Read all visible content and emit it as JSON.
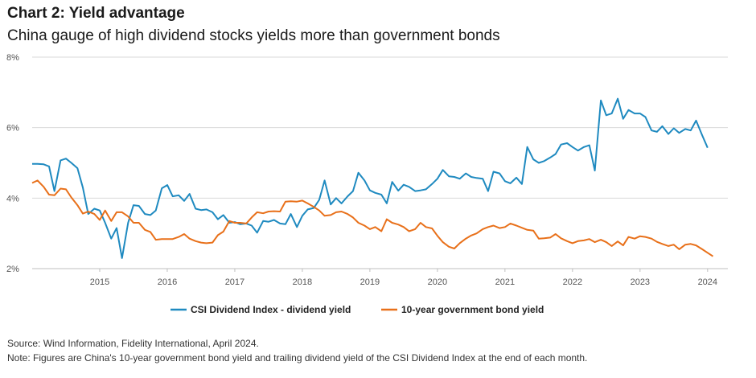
{
  "header": {
    "title": "Chart 2: Yield advantage",
    "subtitle": "China gauge of high dividend stocks yields more than government bonds"
  },
  "footer": {
    "source": "Source: Wind Information, Fidelity International, April 2024.",
    "note": "Note: Figures are China's 10-year government bond yield and trailing dividend yield of the CSI Dividend Index at the end of each month."
  },
  "colors": {
    "csi": "#1f8ac0",
    "bond": "#e8701a",
    "grid": "#d9d9d9",
    "axis": "#bfbfbf"
  },
  "chart_data": {
    "type": "line",
    "title": "Chart 2: Yield advantage",
    "subtitle": "China gauge of high dividend stocks yields more than government bonds",
    "xlabel": "",
    "ylabel": "",
    "ylim": [
      2,
      8
    ],
    "yticks": [
      2,
      4,
      6,
      8
    ],
    "ytick_labels": [
      "2%",
      "4%",
      "6%",
      "8%"
    ],
    "xlim": [
      2014.0,
      2024.3
    ],
    "xticks": [
      2015,
      2016,
      2017,
      2018,
      2019,
      2020,
      2021,
      2022,
      2023,
      2024
    ],
    "xtick_labels": [
      "2015",
      "2016",
      "2017",
      "2018",
      "2019",
      "2020",
      "2021",
      "2022",
      "2023",
      "2024"
    ],
    "grid": "horizontal",
    "legend": "bottom-center",
    "series": [
      {
        "name": "CSI Dividend Index - dividend yield",
        "color": "#1f8ac0",
        "points": [
          [
            2014.0,
            4.97
          ],
          [
            2014.08,
            4.97
          ],
          [
            2014.17,
            4.96
          ],
          [
            2014.25,
            4.9
          ],
          [
            2014.33,
            4.2
          ],
          [
            2014.42,
            5.07
          ],
          [
            2014.5,
            5.12
          ],
          [
            2014.58,
            5.0
          ],
          [
            2014.67,
            4.85
          ],
          [
            2014.75,
            4.3
          ],
          [
            2014.83,
            3.55
          ],
          [
            2014.92,
            3.7
          ],
          [
            2015.0,
            3.65
          ],
          [
            2015.08,
            3.3
          ],
          [
            2015.17,
            2.85
          ],
          [
            2015.25,
            3.15
          ],
          [
            2015.33,
            2.3
          ],
          [
            2015.42,
            3.3
          ],
          [
            2015.5,
            3.8
          ],
          [
            2015.58,
            3.78
          ],
          [
            2015.67,
            3.55
          ],
          [
            2015.75,
            3.52
          ],
          [
            2015.83,
            3.65
          ],
          [
            2015.92,
            4.28
          ],
          [
            2016.0,
            4.37
          ],
          [
            2016.08,
            4.05
          ],
          [
            2016.17,
            4.08
          ],
          [
            2016.25,
            3.92
          ],
          [
            2016.33,
            4.12
          ],
          [
            2016.42,
            3.7
          ],
          [
            2016.5,
            3.66
          ],
          [
            2016.58,
            3.68
          ],
          [
            2016.67,
            3.6
          ],
          [
            2016.75,
            3.4
          ],
          [
            2016.83,
            3.52
          ],
          [
            2016.92,
            3.3
          ],
          [
            2017.0,
            3.32
          ],
          [
            2017.08,
            3.26
          ],
          [
            2017.17,
            3.28
          ],
          [
            2017.25,
            3.22
          ],
          [
            2017.33,
            3.02
          ],
          [
            2017.42,
            3.35
          ],
          [
            2017.5,
            3.33
          ],
          [
            2017.58,
            3.38
          ],
          [
            2017.67,
            3.28
          ],
          [
            2017.75,
            3.26
          ],
          [
            2017.83,
            3.55
          ],
          [
            2017.92,
            3.18
          ],
          [
            2018.0,
            3.5
          ],
          [
            2018.08,
            3.68
          ],
          [
            2018.17,
            3.72
          ],
          [
            2018.25,
            3.95
          ],
          [
            2018.33,
            4.5
          ],
          [
            2018.42,
            3.82
          ],
          [
            2018.5,
            4.0
          ],
          [
            2018.58,
            3.85
          ],
          [
            2018.67,
            4.05
          ],
          [
            2018.75,
            4.2
          ],
          [
            2018.83,
            4.72
          ],
          [
            2018.92,
            4.5
          ],
          [
            2019.0,
            4.22
          ],
          [
            2019.08,
            4.15
          ],
          [
            2019.17,
            4.1
          ],
          [
            2019.25,
            3.85
          ],
          [
            2019.33,
            4.46
          ],
          [
            2019.42,
            4.21
          ],
          [
            2019.5,
            4.38
          ],
          [
            2019.58,
            4.32
          ],
          [
            2019.67,
            4.2
          ],
          [
            2019.75,
            4.22
          ],
          [
            2019.83,
            4.25
          ],
          [
            2019.92,
            4.4
          ],
          [
            2020.0,
            4.55
          ],
          [
            2020.08,
            4.8
          ],
          [
            2020.17,
            4.62
          ],
          [
            2020.25,
            4.6
          ],
          [
            2020.33,
            4.55
          ],
          [
            2020.42,
            4.7
          ],
          [
            2020.5,
            4.6
          ],
          [
            2020.58,
            4.57
          ],
          [
            2020.67,
            4.55
          ],
          [
            2020.75,
            4.2
          ],
          [
            2020.83,
            4.75
          ],
          [
            2020.92,
            4.7
          ],
          [
            2021.0,
            4.48
          ],
          [
            2021.08,
            4.42
          ],
          [
            2021.17,
            4.58
          ],
          [
            2021.25,
            4.4
          ],
          [
            2021.33,
            5.45
          ],
          [
            2021.42,
            5.1
          ],
          [
            2021.5,
            5.0
          ],
          [
            2021.58,
            5.05
          ],
          [
            2021.67,
            5.15
          ],
          [
            2021.75,
            5.25
          ],
          [
            2021.83,
            5.52
          ],
          [
            2021.92,
            5.56
          ],
          [
            2022.0,
            5.45
          ],
          [
            2022.08,
            5.35
          ],
          [
            2022.17,
            5.45
          ],
          [
            2022.25,
            5.5
          ],
          [
            2022.33,
            4.78
          ],
          [
            2022.42,
            6.77
          ],
          [
            2022.5,
            6.35
          ],
          [
            2022.58,
            6.4
          ],
          [
            2022.67,
            6.82
          ],
          [
            2022.75,
            6.25
          ],
          [
            2022.83,
            6.5
          ],
          [
            2022.92,
            6.4
          ],
          [
            2023.0,
            6.4
          ],
          [
            2023.08,
            6.3
          ],
          [
            2023.17,
            5.92
          ],
          [
            2023.25,
            5.88
          ],
          [
            2023.33,
            6.04
          ],
          [
            2023.42,
            5.82
          ],
          [
            2023.5,
            5.98
          ],
          [
            2023.58,
            5.85
          ],
          [
            2023.67,
            5.96
          ],
          [
            2023.75,
            5.92
          ],
          [
            2023.83,
            6.2
          ],
          [
            2023.92,
            5.78
          ],
          [
            2024.0,
            5.43
          ]
        ]
      },
      {
        "name": "10-year government bond yield",
        "color": "#e8701a",
        "points": [
          [
            2014.0,
            4.43
          ],
          [
            2014.08,
            4.5
          ],
          [
            2014.17,
            4.32
          ],
          [
            2014.25,
            4.1
          ],
          [
            2014.33,
            4.08
          ],
          [
            2014.42,
            4.27
          ],
          [
            2014.5,
            4.25
          ],
          [
            2014.58,
            4.02
          ],
          [
            2014.67,
            3.8
          ],
          [
            2014.75,
            3.56
          ],
          [
            2014.83,
            3.62
          ],
          [
            2014.92,
            3.55
          ],
          [
            2015.0,
            3.38
          ],
          [
            2015.08,
            3.65
          ],
          [
            2015.17,
            3.35
          ],
          [
            2015.25,
            3.6
          ],
          [
            2015.33,
            3.6
          ],
          [
            2015.42,
            3.48
          ],
          [
            2015.5,
            3.3
          ],
          [
            2015.58,
            3.3
          ],
          [
            2015.67,
            3.1
          ],
          [
            2015.75,
            3.04
          ],
          [
            2015.83,
            2.82
          ],
          [
            2015.92,
            2.84
          ],
          [
            2016.0,
            2.84
          ],
          [
            2016.08,
            2.84
          ],
          [
            2016.17,
            2.9
          ],
          [
            2016.25,
            2.98
          ],
          [
            2016.33,
            2.85
          ],
          [
            2016.42,
            2.78
          ],
          [
            2016.5,
            2.74
          ],
          [
            2016.58,
            2.72
          ],
          [
            2016.67,
            2.74
          ],
          [
            2016.75,
            2.95
          ],
          [
            2016.83,
            3.05
          ],
          [
            2016.92,
            3.35
          ],
          [
            2017.0,
            3.3
          ],
          [
            2017.08,
            3.3
          ],
          [
            2017.17,
            3.28
          ],
          [
            2017.25,
            3.45
          ],
          [
            2017.33,
            3.6
          ],
          [
            2017.42,
            3.57
          ],
          [
            2017.5,
            3.62
          ],
          [
            2017.58,
            3.63
          ],
          [
            2017.67,
            3.62
          ],
          [
            2017.75,
            3.9
          ],
          [
            2017.83,
            3.91
          ],
          [
            2017.92,
            3.9
          ],
          [
            2018.0,
            3.93
          ],
          [
            2018.08,
            3.85
          ],
          [
            2018.17,
            3.75
          ],
          [
            2018.25,
            3.65
          ],
          [
            2018.33,
            3.5
          ],
          [
            2018.42,
            3.52
          ],
          [
            2018.5,
            3.6
          ],
          [
            2018.58,
            3.62
          ],
          [
            2018.67,
            3.55
          ],
          [
            2018.75,
            3.45
          ],
          [
            2018.83,
            3.3
          ],
          [
            2018.92,
            3.22
          ],
          [
            2019.0,
            3.12
          ],
          [
            2019.08,
            3.18
          ],
          [
            2019.17,
            3.06
          ],
          [
            2019.25,
            3.4
          ],
          [
            2019.33,
            3.3
          ],
          [
            2019.42,
            3.25
          ],
          [
            2019.5,
            3.18
          ],
          [
            2019.58,
            3.06
          ],
          [
            2019.67,
            3.12
          ],
          [
            2019.75,
            3.3
          ],
          [
            2019.83,
            3.18
          ],
          [
            2019.92,
            3.14
          ],
          [
            2020.0,
            2.93
          ],
          [
            2020.08,
            2.75
          ],
          [
            2020.17,
            2.62
          ],
          [
            2020.25,
            2.57
          ],
          [
            2020.33,
            2.72
          ],
          [
            2020.42,
            2.85
          ],
          [
            2020.5,
            2.94
          ],
          [
            2020.58,
            3.0
          ],
          [
            2020.67,
            3.12
          ],
          [
            2020.75,
            3.18
          ],
          [
            2020.83,
            3.22
          ],
          [
            2020.92,
            3.15
          ],
          [
            2021.0,
            3.18
          ],
          [
            2021.08,
            3.28
          ],
          [
            2021.17,
            3.22
          ],
          [
            2021.25,
            3.16
          ],
          [
            2021.33,
            3.1
          ],
          [
            2021.42,
            3.08
          ],
          [
            2021.5,
            2.85
          ],
          [
            2021.58,
            2.86
          ],
          [
            2021.67,
            2.88
          ],
          [
            2021.75,
            2.98
          ],
          [
            2021.83,
            2.86
          ],
          [
            2021.92,
            2.78
          ],
          [
            2022.0,
            2.72
          ],
          [
            2022.08,
            2.78
          ],
          [
            2022.17,
            2.8
          ],
          [
            2022.25,
            2.84
          ],
          [
            2022.33,
            2.75
          ],
          [
            2022.42,
            2.82
          ],
          [
            2022.5,
            2.75
          ],
          [
            2022.58,
            2.64
          ],
          [
            2022.67,
            2.77
          ],
          [
            2022.75,
            2.66
          ],
          [
            2022.83,
            2.9
          ],
          [
            2022.92,
            2.85
          ],
          [
            2023.0,
            2.92
          ],
          [
            2023.08,
            2.9
          ],
          [
            2023.17,
            2.85
          ],
          [
            2023.25,
            2.76
          ],
          [
            2023.33,
            2.7
          ],
          [
            2023.42,
            2.64
          ],
          [
            2023.5,
            2.68
          ],
          [
            2023.58,
            2.55
          ],
          [
            2023.67,
            2.68
          ],
          [
            2023.75,
            2.7
          ],
          [
            2023.83,
            2.66
          ],
          [
            2023.92,
            2.55
          ],
          [
            2024.0,
            2.45
          ],
          [
            2024.08,
            2.35
          ]
        ]
      }
    ]
  }
}
